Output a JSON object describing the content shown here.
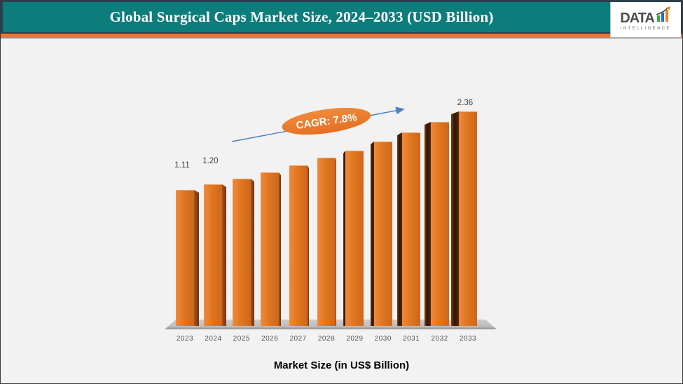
{
  "header": {
    "title": "Global Surgical Caps Market Size, 2024–2033 (USD Billion)"
  },
  "logo": {
    "name": "DATA",
    "subtitle": "INTELLIGENCE"
  },
  "chart_data": {
    "type": "bar",
    "title": "Global Surgical Caps Market Size, 2024–2033 (USD Billion)",
    "categories": [
      "2023",
      "2024",
      "2025",
      "2026",
      "2027",
      "2028",
      "2029",
      "2030",
      "2031",
      "2032",
      "2033"
    ],
    "values": [
      1.11,
      1.2,
      1.29,
      1.39,
      1.5,
      1.62,
      1.74,
      1.88,
      2.02,
      2.19,
      2.36
    ],
    "labeled_values": {
      "2023": "1.11",
      "2024": "1.20",
      "2033": "2.36"
    },
    "annotation": {
      "text": "CAGR: 7.8%"
    },
    "xlabel": "Market Size (in US$ Billion)",
    "ylabel": "",
    "legend": "none",
    "grid": "off"
  },
  "colors": {
    "header_teal": "#0d7d7b",
    "header_border_navy": "#24435a",
    "header_orange_strip": "#e5763a",
    "bar_orange": "#e0761f",
    "bar_side_dark": "#2e1504",
    "annotation_orange": "#ec7b2e",
    "trend_arrow_blue": "#4f7fc2",
    "background": "#f2f2f2"
  }
}
